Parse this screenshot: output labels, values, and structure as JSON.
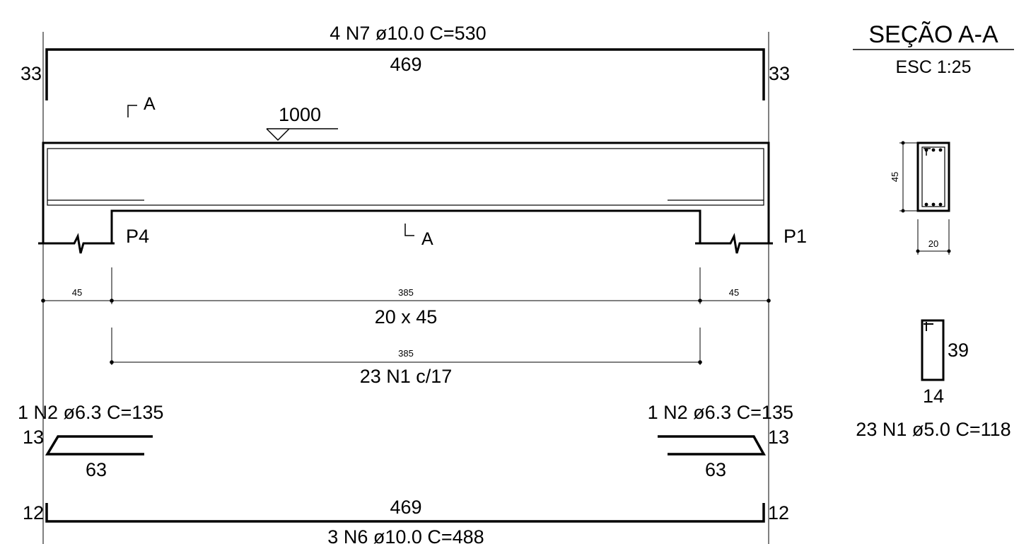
{
  "top_bar": {
    "label": "4 N7 ø10.0  C=530",
    "length": "469",
    "hook_left": "33",
    "hook_right": "33"
  },
  "section_cut": {
    "mark_top": "A",
    "mark_bottom": "A"
  },
  "level_mark": "1000",
  "supports": {
    "left": "P4",
    "right": "P1"
  },
  "dims": {
    "left": "45",
    "span": "385",
    "right": "45",
    "beam_size": "20 x 45"
  },
  "stirrups": {
    "span": "385",
    "label": "23 N1 c/17"
  },
  "n2_left": {
    "label": "1 N2 ø6.3  C=135",
    "hook": "13",
    "length": "63"
  },
  "n2_right": {
    "label": "1 N2 ø6.3  C=135",
    "hook": "13",
    "length": "63"
  },
  "bottom_bar": {
    "length": "469",
    "hook_left": "12",
    "hook_right": "12",
    "label": "3 N6 ø10.0  C=488"
  },
  "section": {
    "title": "SEÇÃO A-A",
    "scale": "ESC 1:25",
    "height": "45",
    "width": "20"
  },
  "stirrup_detail": {
    "height": "39",
    "width": "14",
    "label": "23 N1 ø5.0  C=118"
  }
}
